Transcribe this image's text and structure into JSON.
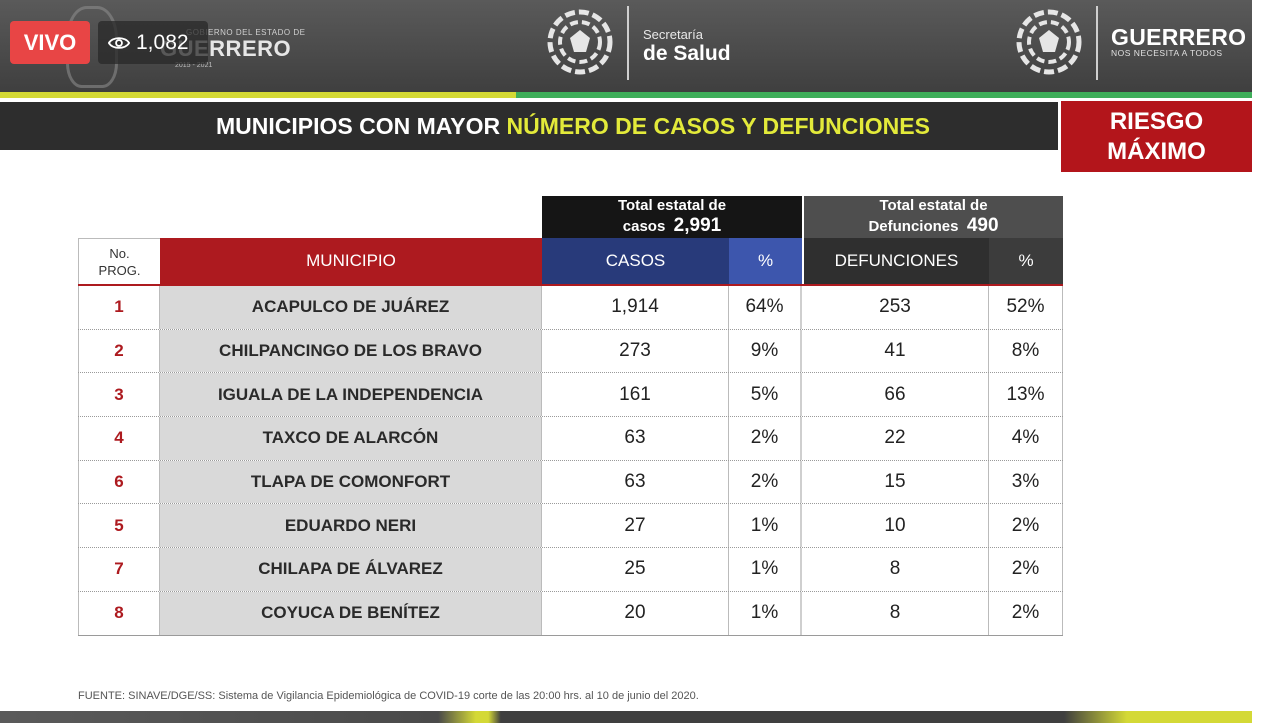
{
  "stream": {
    "live_label": "VIVO",
    "viewer_count": "1,082",
    "eye_icon": "eye-icon"
  },
  "header": {
    "gobierno": {
      "top": "GOBIERNO DEL ESTADO DE",
      "name": "GUERRERO",
      "years": "2015 - 2021"
    },
    "salud": {
      "line1": "Secretaría",
      "line2": "de Salud"
    },
    "guerrero": {
      "name": "GUERRERO",
      "tagline": "NOS NECESITA A TODOS"
    },
    "colors": {
      "yellow": "#d4d936",
      "green": "#3fae5a",
      "dark": "#4a4a4a"
    }
  },
  "title": {
    "part1": "MUNICIPIOS CON MAYOR ",
    "part2": "NÚMERO DE CASOS Y DEFUNCIONES",
    "highlight_color": "#e3ea3a"
  },
  "risk": {
    "line1": "RIESGO",
    "line2": "MÁXIMO",
    "color": "#b3151b"
  },
  "totals": {
    "cases_label_1": "Total estatal de",
    "cases_label_2": "casos",
    "cases_value": "2,991",
    "deaths_label_1": "Total estatal de",
    "deaths_label_2": "Defunciones",
    "deaths_value": "490"
  },
  "table": {
    "headers": {
      "no_1": "No.",
      "no_2": "PROG.",
      "municipio": "MUNICIPIO",
      "casos": "CASOS",
      "casos_pct": "%",
      "defunciones": "DEFUNCIONES",
      "def_pct": "%"
    },
    "header_colors": {
      "municipio": "#ad1a1f",
      "casos": "#283a7a",
      "casos_pct": "#3d56ad",
      "defunciones": "#2f2f2f",
      "def_pct": "#3c3c3c"
    },
    "rows": [
      {
        "no": "1",
        "municipio": "ACAPULCO  DE JUÁREZ",
        "casos": "1,914",
        "casos_pct": "64%",
        "defunciones": "253",
        "def_pct": "52%"
      },
      {
        "no": "2",
        "municipio": "CHILPANCINGO DE LOS BRAVO",
        "casos": "273",
        "casos_pct": "9%",
        "defunciones": "41",
        "def_pct": "8%"
      },
      {
        "no": "3",
        "municipio": "IGUALA DE LA INDEPENDENCIA",
        "casos": "161",
        "casos_pct": "5%",
        "defunciones": "66",
        "def_pct": "13%"
      },
      {
        "no": "4",
        "municipio": "TAXCO DE ALARCÓN",
        "casos": "63",
        "casos_pct": "2%",
        "defunciones": "22",
        "def_pct": "4%"
      },
      {
        "no": "6",
        "municipio": "TLAPA DE COMONFORT",
        "casos": "63",
        "casos_pct": "2%",
        "defunciones": "15",
        "def_pct": "3%"
      },
      {
        "no": "5",
        "municipio": "EDUARDO NERI",
        "casos": "27",
        "casos_pct": "1%",
        "defunciones": "10",
        "def_pct": "2%"
      },
      {
        "no": "7",
        "municipio": "CHILAPA DE ÁLVAREZ",
        "casos": "25",
        "casos_pct": "1%",
        "defunciones": "8",
        "def_pct": "2%"
      },
      {
        "no": "8",
        "municipio": "COYUCA DE BENÍTEZ",
        "casos": "20",
        "casos_pct": "1%",
        "defunciones": "8",
        "def_pct": "2%"
      }
    ]
  },
  "footnote": "FUENTE: SINAVE/DGE/SS: Sistema de Vigilancia Epidemiológica de COVID-19 corte de las 20:00 hrs. al 10 de junio del 2020."
}
